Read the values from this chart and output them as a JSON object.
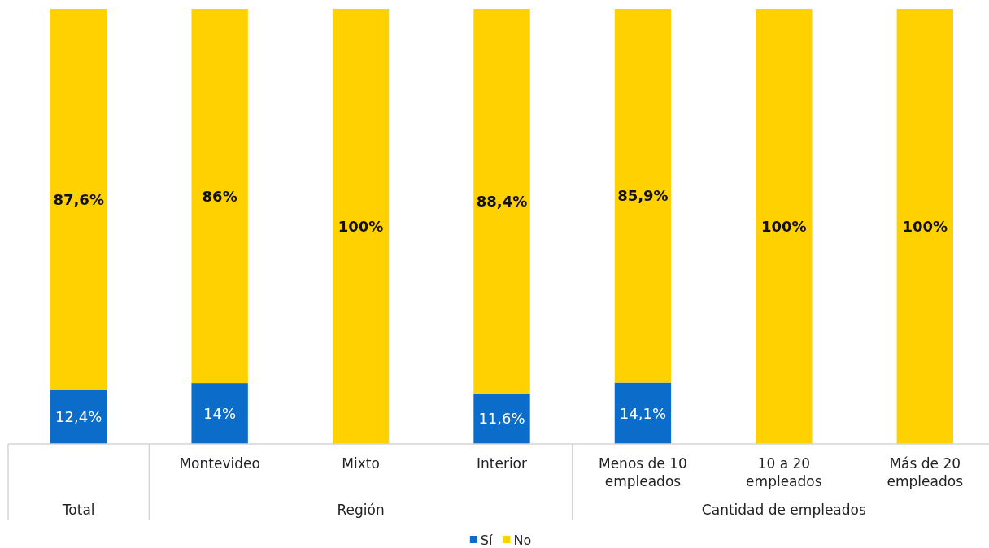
{
  "chart_data": {
    "type": "bar",
    "stacked": true,
    "categories": [
      null,
      "Montevideo",
      "Mixto",
      "Interior",
      "Menos de 10 empleados",
      "10 a 20 empleados",
      "Más de 20 empleados"
    ],
    "series": [
      {
        "name": "Sí",
        "color": "#0b6cc9",
        "values": [
          12.4,
          14,
          0,
          11.6,
          14.1,
          0,
          0
        ],
        "value_labels": [
          "12,4%",
          "14%",
          null,
          "11,6%",
          "14,1%",
          null,
          null
        ]
      },
      {
        "name": "No",
        "color": "#ffd100",
        "values": [
          87.6,
          86,
          100,
          88.4,
          85.9,
          100,
          100
        ],
        "value_labels": [
          "87,6%",
          "86%",
          "100%",
          "88,4%",
          "85,9%",
          "100%",
          "100%"
        ]
      }
    ],
    "annotations": [
      "Total",
      "Región",
      "Cantidad de empleados"
    ],
    "legend": "bottom",
    "tick_labels": "x"
  }
}
